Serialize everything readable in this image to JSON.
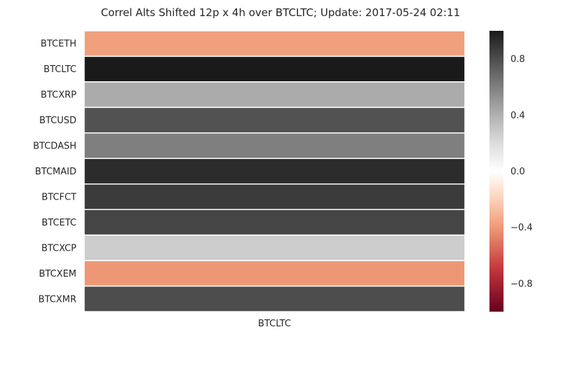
{
  "chart_data": {
    "type": "heatmap",
    "title": "Correl Alts Shifted 12p x 4h over BTCLTC; Update: 2017-05-24 02:11",
    "x_categories": [
      "BTCLTC"
    ],
    "y_categories": [
      "BTCETH",
      "BTCLTC",
      "BTCXRP",
      "BTCUSD",
      "BTCDASH",
      "BTCMAID",
      "BTCFCT",
      "BTCETC",
      "BTCXCP",
      "BTCXEM",
      "BTCXMR"
    ],
    "values": [
      -0.38,
      1.0,
      0.42,
      0.78,
      0.6,
      0.93,
      0.87,
      0.83,
      0.27,
      -0.41,
      0.8
    ],
    "colorbar": {
      "range": [
        -1,
        1
      ],
      "ticks": [
        0.8,
        0.4,
        0.0,
        -0.4,
        -0.8
      ],
      "tick_labels": [
        "0.8",
        "0.4",
        "0.0",
        "−0.4",
        "−0.8"
      ],
      "colormap": "RdGy_r"
    },
    "xlabel": "",
    "ylabel": "",
    "grid": false,
    "legend": "colorbar-right"
  }
}
